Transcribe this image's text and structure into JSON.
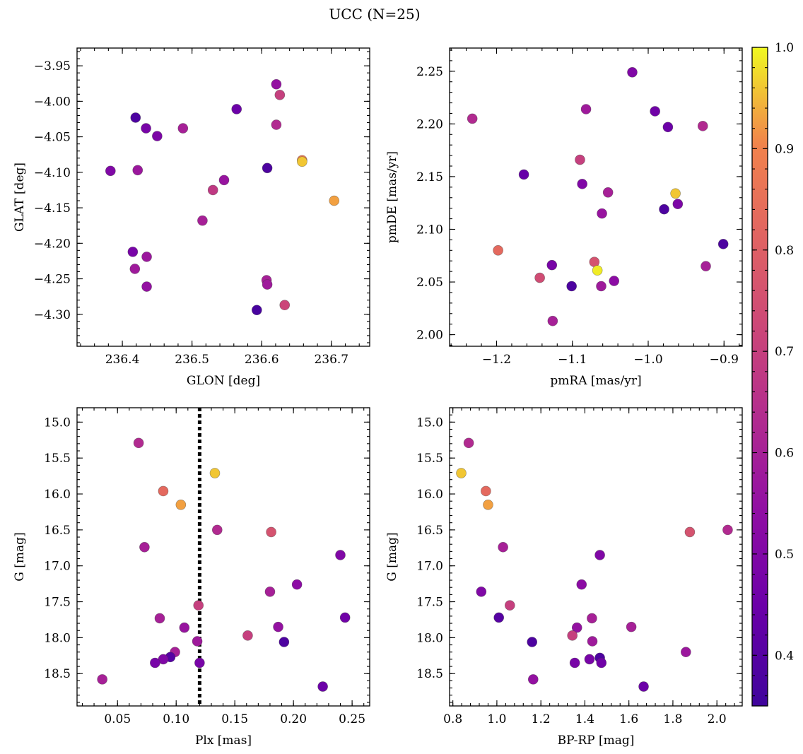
{
  "figure": {
    "title": "UCC (N=25)",
    "colorbar": {
      "cmap": "plasma",
      "vmin": 0.35,
      "vmax": 1.0,
      "ticks": [
        0.4,
        0.5,
        0.6,
        0.7,
        0.8,
        0.9,
        1.0
      ],
      "tick_labels": [
        "0.4",
        "0.5",
        "0.6",
        "0.7",
        "0.8",
        "0.9",
        "1.0"
      ]
    }
  },
  "chart_data": [
    {
      "type": "scatter",
      "xlabel": "GLON [deg]",
      "ylabel": "GLAT [deg]",
      "xlim": [
        236.335,
        236.755
      ],
      "ylim": [
        -4.345,
        -3.925
      ],
      "invert_y": false,
      "xticks": [
        236.4,
        236.5,
        236.6,
        236.7
      ],
      "xtick_labels": [
        "236.4",
        "236.5",
        "236.6",
        "236.7"
      ],
      "yticks": [
        -3.95,
        -4.0,
        -4.05,
        -4.1,
        -4.15,
        -4.2,
        -4.25,
        -4.3
      ],
      "ytick_labels": [
        "−3.95",
        "−4.00",
        "−4.05",
        "−4.10",
        "−4.15",
        "−4.20",
        "−4.25",
        "−4.30"
      ],
      "points": [
        {
          "x": 236.383,
          "y": -4.098,
          "c": 0.5
        },
        {
          "x": 236.419,
          "y": -4.023,
          "c": 0.38
        },
        {
          "x": 236.434,
          "y": -4.038,
          "c": 0.48
        },
        {
          "x": 236.45,
          "y": -4.049,
          "c": 0.49
        },
        {
          "x": 236.422,
          "y": -4.097,
          "c": 0.57
        },
        {
          "x": 236.487,
          "y": -4.038,
          "c": 0.6
        },
        {
          "x": 236.564,
          "y": -4.011,
          "c": 0.45
        },
        {
          "x": 236.621,
          "y": -3.976,
          "c": 0.55
        },
        {
          "x": 236.626,
          "y": -3.991,
          "c": 0.7
        },
        {
          "x": 236.621,
          "y": -4.033,
          "c": 0.63
        },
        {
          "x": 236.608,
          "y": -4.094,
          "c": 0.38
        },
        {
          "x": 236.658,
          "y": -4.083,
          "c": 0.88
        },
        {
          "x": 236.658,
          "y": -4.085,
          "c": 0.96
        },
        {
          "x": 236.546,
          "y": -4.111,
          "c": 0.56
        },
        {
          "x": 236.53,
          "y": -4.125,
          "c": 0.68
        },
        {
          "x": 236.704,
          "y": -4.14,
          "c": 0.93
        },
        {
          "x": 236.515,
          "y": -4.168,
          "c": 0.6
        },
        {
          "x": 236.415,
          "y": -4.212,
          "c": 0.48
        },
        {
          "x": 236.435,
          "y": -4.219,
          "c": 0.57
        },
        {
          "x": 236.418,
          "y": -4.236,
          "c": 0.58
        },
        {
          "x": 236.435,
          "y": -4.261,
          "c": 0.55
        },
        {
          "x": 236.607,
          "y": -4.252,
          "c": 0.6
        },
        {
          "x": 236.608,
          "y": -4.258,
          "c": 0.58
        },
        {
          "x": 236.593,
          "y": -4.294,
          "c": 0.37
        },
        {
          "x": 236.633,
          "y": -4.287,
          "c": 0.72
        }
      ]
    },
    {
      "type": "scatter",
      "xlabel": "pmRA [mas/yr]",
      "ylabel": "pmDE [mas/yr]",
      "xlim": [
        -1.262,
        -0.876
      ],
      "ylim": [
        1.989,
        2.272
      ],
      "invert_y": false,
      "xticks": [
        -1.2,
        -1.1,
        -1.0,
        -0.9
      ],
      "xtick_labels": [
        "−1.2",
        "−1.1",
        "−1.0",
        "−0.9"
      ],
      "yticks": [
        2.0,
        2.05,
        2.1,
        2.15,
        2.2,
        2.25
      ],
      "ytick_labels": [
        "2.00",
        "2.05",
        "2.10",
        "2.15",
        "2.20",
        "2.25"
      ],
      "points": [
        {
          "x": -1.021,
          "y": 2.249,
          "c": 0.5
        },
        {
          "x": -1.232,
          "y": 2.205,
          "c": 0.63
        },
        {
          "x": -1.082,
          "y": 2.214,
          "c": 0.58
        },
        {
          "x": -0.991,
          "y": 2.212,
          "c": 0.46
        },
        {
          "x": -0.974,
          "y": 2.197,
          "c": 0.45
        },
        {
          "x": -0.928,
          "y": 2.198,
          "c": 0.63
        },
        {
          "x": -1.09,
          "y": 2.166,
          "c": 0.7
        },
        {
          "x": -1.164,
          "y": 2.152,
          "c": 0.44
        },
        {
          "x": -1.087,
          "y": 2.143,
          "c": 0.5
        },
        {
          "x": -1.053,
          "y": 2.135,
          "c": 0.6
        },
        {
          "x": -0.964,
          "y": 2.134,
          "c": 0.96
        },
        {
          "x": -0.961,
          "y": 2.124,
          "c": 0.49
        },
        {
          "x": -1.061,
          "y": 2.115,
          "c": 0.56
        },
        {
          "x": -0.979,
          "y": 2.119,
          "c": 0.38
        },
        {
          "x": -0.901,
          "y": 2.086,
          "c": 0.38
        },
        {
          "x": -1.198,
          "y": 2.08,
          "c": 0.83
        },
        {
          "x": -1.071,
          "y": 2.069,
          "c": 0.76
        },
        {
          "x": -1.067,
          "y": 2.061,
          "c": 0.99
        },
        {
          "x": -0.924,
          "y": 2.065,
          "c": 0.6
        },
        {
          "x": -1.127,
          "y": 2.066,
          "c": 0.48
        },
        {
          "x": -1.143,
          "y": 2.054,
          "c": 0.74
        },
        {
          "x": -1.101,
          "y": 2.046,
          "c": 0.38
        },
        {
          "x": -1.062,
          "y": 2.046,
          "c": 0.58
        },
        {
          "x": -1.045,
          "y": 2.051,
          "c": 0.53
        },
        {
          "x": -1.126,
          "y": 2.013,
          "c": 0.6
        }
      ]
    },
    {
      "type": "scatter",
      "xlabel": "Plx [mas]",
      "ylabel": "G [mag]",
      "xlim": [
        0.0155,
        0.265
      ],
      "ylim": [
        18.95,
        14.8
      ],
      "invert_y": true,
      "vline": {
        "x": 0.12,
        "style": "dotted"
      },
      "xticks": [
        0.05,
        0.1,
        0.15,
        0.2,
        0.25
      ],
      "xtick_labels": [
        "0.05",
        "0.10",
        "0.15",
        "0.20",
        "0.25"
      ],
      "yticks": [
        15.0,
        15.5,
        16.0,
        16.5,
        17.0,
        17.5,
        18.0,
        18.5
      ],
      "ytick_labels": [
        "15.0",
        "15.5",
        "16.0",
        "16.5",
        "17.0",
        "17.5",
        "18.0",
        "18.5"
      ],
      "points": [
        {
          "x": 0.068,
          "y": 15.29,
          "c": 0.63
        },
        {
          "x": 0.133,
          "y": 15.71,
          "c": 0.96
        },
        {
          "x": 0.089,
          "y": 15.96,
          "c": 0.83
        },
        {
          "x": 0.104,
          "y": 16.15,
          "c": 0.93
        },
        {
          "x": 0.135,
          "y": 16.5,
          "c": 0.63
        },
        {
          "x": 0.181,
          "y": 16.53,
          "c": 0.76
        },
        {
          "x": 0.073,
          "y": 16.74,
          "c": 0.6
        },
        {
          "x": 0.24,
          "y": 16.85,
          "c": 0.5
        },
        {
          "x": 0.203,
          "y": 17.26,
          "c": 0.53
        },
        {
          "x": 0.18,
          "y": 17.36,
          "c": 0.6
        },
        {
          "x": 0.119,
          "y": 17.55,
          "c": 0.7
        },
        {
          "x": 0.244,
          "y": 17.72,
          "c": 0.46
        },
        {
          "x": 0.086,
          "y": 17.73,
          "c": 0.6
        },
        {
          "x": 0.107,
          "y": 17.86,
          "c": 0.56
        },
        {
          "x": 0.187,
          "y": 17.85,
          "c": 0.55
        },
        {
          "x": 0.161,
          "y": 17.97,
          "c": 0.7
        },
        {
          "x": 0.118,
          "y": 18.05,
          "c": 0.58
        },
        {
          "x": 0.192,
          "y": 18.06,
          "c": 0.38
        },
        {
          "x": 0.099,
          "y": 18.2,
          "c": 0.6
        },
        {
          "x": 0.095,
          "y": 18.27,
          "c": 0.4
        },
        {
          "x": 0.089,
          "y": 18.3,
          "c": 0.5
        },
        {
          "x": 0.082,
          "y": 18.35,
          "c": 0.48
        },
        {
          "x": 0.12,
          "y": 18.35,
          "c": 0.48
        },
        {
          "x": 0.037,
          "y": 18.58,
          "c": 0.6
        },
        {
          "x": 0.225,
          "y": 18.68,
          "c": 0.45
        }
      ]
    },
    {
      "type": "scatter",
      "xlabel": "BP-RP [mag]",
      "ylabel": "G [mag]",
      "xlim": [
        0.785,
        2.115
      ],
      "ylim": [
        18.95,
        14.8
      ],
      "invert_y": true,
      "xticks": [
        0.8,
        1.0,
        1.2,
        1.4,
        1.6,
        1.8,
        2.0
      ],
      "xtick_labels": [
        "0.8",
        "1.0",
        "1.2",
        "1.4",
        "1.6",
        "1.8",
        "2.0"
      ],
      "yticks": [
        15.0,
        15.5,
        16.0,
        16.5,
        17.0,
        17.5,
        18.0,
        18.5
      ],
      "ytick_labels": [
        "15.0",
        "15.5",
        "16.0",
        "16.5",
        "17.0",
        "17.5",
        "18.0",
        "18.5"
      ],
      "points": [
        {
          "x": 0.872,
          "y": 15.29,
          "c": 0.63
        },
        {
          "x": 0.838,
          "y": 15.71,
          "c": 0.96
        },
        {
          "x": 0.95,
          "y": 15.96,
          "c": 0.83
        },
        {
          "x": 0.96,
          "y": 16.15,
          "c": 0.93
        },
        {
          "x": 2.049,
          "y": 16.5,
          "c": 0.63
        },
        {
          "x": 1.877,
          "y": 16.53,
          "c": 0.76
        },
        {
          "x": 1.028,
          "y": 16.74,
          "c": 0.6
        },
        {
          "x": 1.468,
          "y": 16.85,
          "c": 0.5
        },
        {
          "x": 1.385,
          "y": 17.26,
          "c": 0.53
        },
        {
          "x": 0.929,
          "y": 17.36,
          "c": 0.5
        },
        {
          "x": 1.059,
          "y": 17.55,
          "c": 0.7
        },
        {
          "x": 1.009,
          "y": 17.72,
          "c": 0.4
        },
        {
          "x": 1.432,
          "y": 17.73,
          "c": 0.6
        },
        {
          "x": 1.364,
          "y": 17.86,
          "c": 0.55
        },
        {
          "x": 1.611,
          "y": 17.85,
          "c": 0.6
        },
        {
          "x": 1.343,
          "y": 17.97,
          "c": 0.7
        },
        {
          "x": 1.434,
          "y": 18.05,
          "c": 0.58
        },
        {
          "x": 1.16,
          "y": 18.06,
          "c": 0.38
        },
        {
          "x": 1.859,
          "y": 18.2,
          "c": 0.57
        },
        {
          "x": 1.468,
          "y": 18.28,
          "c": 0.38
        },
        {
          "x": 1.421,
          "y": 18.3,
          "c": 0.48
        },
        {
          "x": 1.354,
          "y": 18.35,
          "c": 0.48
        },
        {
          "x": 1.475,
          "y": 18.35,
          "c": 0.46
        },
        {
          "x": 1.165,
          "y": 18.58,
          "c": 0.55
        },
        {
          "x": 1.667,
          "y": 18.68,
          "c": 0.45
        }
      ]
    }
  ]
}
